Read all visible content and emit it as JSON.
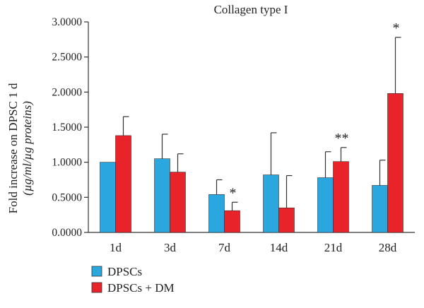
{
  "chart_data": {
    "type": "bar",
    "title": "Collagen type I",
    "ylabel_line1": "Fold increase on DPSC 1 d",
    "ylabel_line2": "(µg/ml/µg proteins)",
    "xlabel": "",
    "categories": [
      "1d",
      "3d",
      "7d",
      "14d",
      "21d",
      "28d"
    ],
    "ylim": [
      0,
      3.0
    ],
    "y_ticks": [
      "0.0000",
      "0.5000",
      "1.0000",
      "1.5000",
      "2.0000",
      "2.5000",
      "3.0000"
    ],
    "grid": false,
    "legend_position": "bottom-left",
    "series": [
      {
        "name": "DPSCs",
        "color": "#2aa7df",
        "values": [
          1.0,
          1.05,
          0.54,
          0.82,
          0.78,
          0.67
        ],
        "errors": [
          0.0,
          0.35,
          0.21,
          0.6,
          0.37,
          0.36
        ]
      },
      {
        "name": "DPSCs + DM",
        "color": "#e8232a",
        "values": [
          1.38,
          0.86,
          0.31,
          0.35,
          1.01,
          1.98
        ],
        "errors": [
          0.27,
          0.26,
          0.12,
          0.46,
          0.2,
          0.8
        ]
      }
    ],
    "annotations": [
      {
        "category": "7d",
        "series": "DPSCs + DM",
        "text": "*"
      },
      {
        "category": "21d",
        "series": "DPSCs + DM",
        "text": "**"
      },
      {
        "category": "28d",
        "series": "DPSCs + DM",
        "text": "*"
      }
    ]
  }
}
